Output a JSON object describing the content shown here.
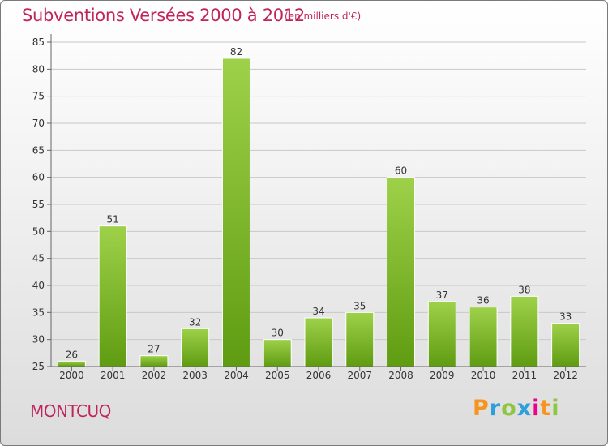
{
  "title": "Subventions Versées 2000 à 2012",
  "subtitle": "(en milliers d'€)",
  "place": "MONTCUQ",
  "logo": {
    "letters": [
      "P",
      "r",
      "o",
      "x",
      "i",
      "t",
      "i"
    ],
    "colors": [
      "#f7941d",
      "#2e9fd8",
      "#8dc63f",
      "#2e9fd8",
      "#ec008c",
      "#f7941d",
      "#8dc63f"
    ]
  },
  "colors": {
    "bar_light": "#9ed14a",
    "bar_dark": "#5f9c12",
    "title": "#c0245c"
  },
  "chart_data": {
    "type": "bar",
    "categories": [
      "2000",
      "2001",
      "2002",
      "2003",
      "2004",
      "2005",
      "2006",
      "2007",
      "2008",
      "2009",
      "2010",
      "2011",
      "2012"
    ],
    "values": [
      26,
      51,
      27,
      32,
      82,
      30,
      34,
      35,
      60,
      37,
      36,
      38,
      33
    ],
    "title": "Subventions Versées 2000 à 2012",
    "subtitle": "(en milliers d'€)",
    "xlabel": "",
    "ylabel": "",
    "ylim": [
      25,
      85
    ],
    "yticks": [
      25,
      30,
      35,
      40,
      45,
      50,
      55,
      60,
      65,
      70,
      75,
      80,
      85
    ],
    "grid": "horizontal"
  }
}
